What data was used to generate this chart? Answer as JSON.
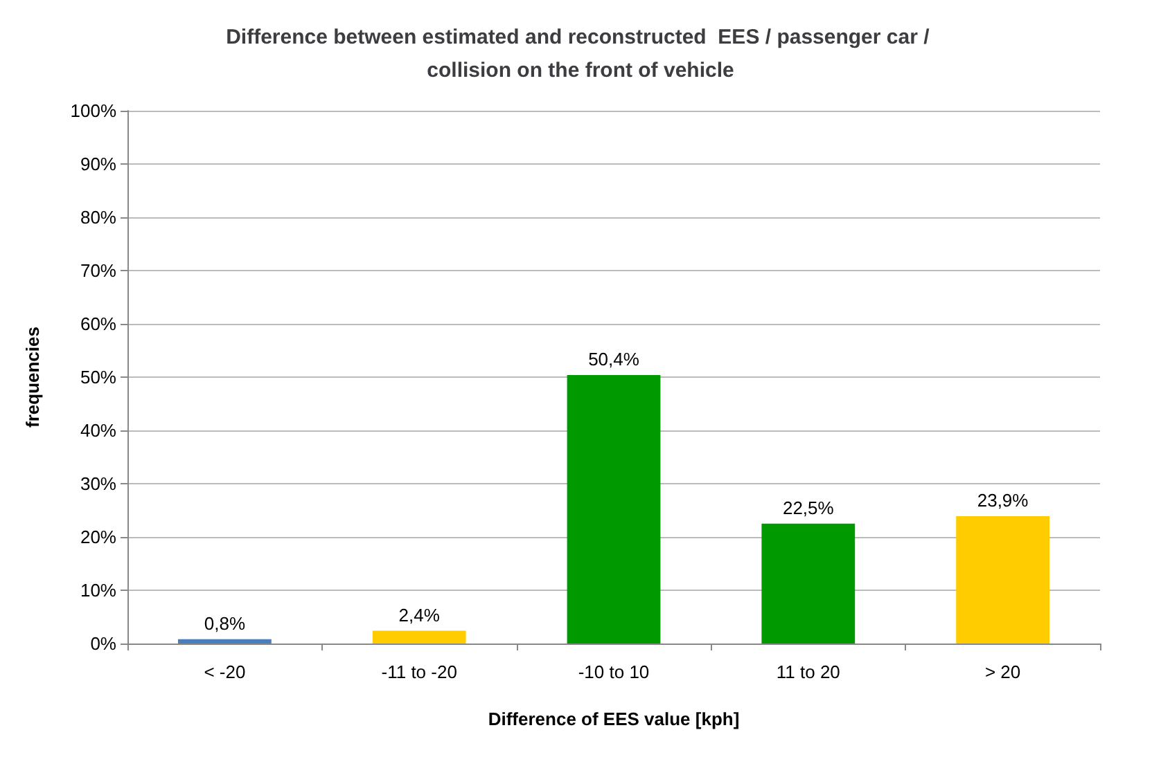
{
  "chart_data": {
    "type": "bar",
    "title": "Difference between estimated and reconstructed  EES / passenger car / collision on the front of vehicle",
    "xlabel": "Difference of EES value [kph]",
    "ylabel": "frequencies",
    "categories": [
      "< -20",
      "-11 to -20",
      "-10 to 10",
      "11 to 20",
      "> 20"
    ],
    "values": [
      0.8,
      2.4,
      50.4,
      22.5,
      23.9
    ],
    "colors": [
      "#4a7ebb",
      "#ffcc00",
      "#009900",
      "#009900",
      "#ffcc00"
    ],
    "value_labels": [
      "0,8%",
      "2,4%",
      "50,4%",
      "22,5%",
      "23,9%"
    ],
    "ylim": [
      0,
      100
    ],
    "yticks": [
      {
        "value": 0,
        "label": "0%"
      },
      {
        "value": 10,
        "label": "10%"
      },
      {
        "value": 20,
        "label": "20%"
      },
      {
        "value": 30,
        "label": "30%"
      },
      {
        "value": 40,
        "label": "40%"
      },
      {
        "value": 50,
        "label": "50%"
      },
      {
        "value": 60,
        "label": "60%"
      },
      {
        "value": 70,
        "label": "70%"
      },
      {
        "value": 80,
        "label": "80%"
      },
      {
        "value": 90,
        "label": "90%"
      },
      {
        "value": 100,
        "label": "100%"
      }
    ],
    "grid": "y"
  }
}
